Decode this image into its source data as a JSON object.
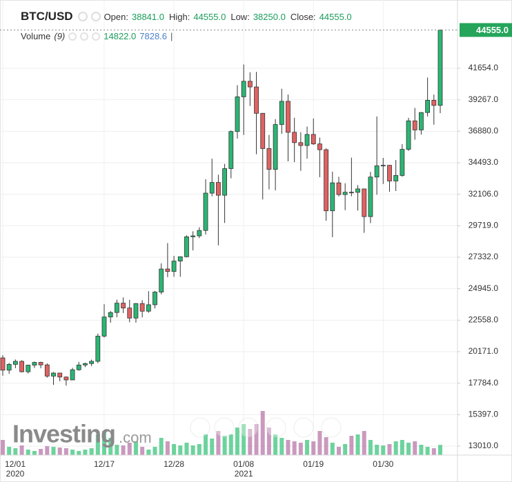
{
  "header": {
    "symbol": "BTC/USD",
    "fields": [
      {
        "name": "Open:",
        "value": "38841.0"
      },
      {
        "name": "High:",
        "value": "44555.0"
      },
      {
        "name": "Low:",
        "value": "38250.0"
      },
      {
        "name": "Close:",
        "value": "44555.0"
      }
    ]
  },
  "volume_legend": {
    "name": "Volume",
    "period": "(9)",
    "last": {
      "value": 14822,
      "label": "14822.0"
    },
    "ma": 7828.6
  },
  "watermark": {
    "brand": "Investing",
    "domain": ".com"
  },
  "chart_data": {
    "type": "candlestick",
    "categories": [
      "12/01",
      null,
      null,
      null,
      null,
      null,
      null,
      null,
      null,
      null,
      null,
      null,
      null,
      null,
      null,
      null,
      "12/17",
      null,
      null,
      null,
      null,
      null,
      null,
      null,
      null,
      null,
      null,
      "12/28",
      null,
      null,
      null,
      null,
      null,
      null,
      null,
      null,
      null,
      null,
      "01/08",
      null,
      null,
      null,
      null,
      null,
      null,
      null,
      null,
      null,
      null,
      "01/19",
      null,
      null,
      null,
      null,
      null,
      null,
      null,
      null,
      null,
      null,
      "01/30",
      null,
      null,
      null,
      null,
      null,
      null,
      null,
      null,
      null
    ],
    "category_years": [
      "2020",
      null,
      null,
      null,
      null,
      null,
      null,
      null,
      null,
      null,
      null,
      null,
      null,
      null,
      null,
      null,
      null,
      null,
      null,
      null,
      null,
      null,
      null,
      null,
      null,
      null,
      null,
      null,
      null,
      null,
      null,
      null,
      null,
      null,
      null,
      null,
      null,
      null,
      "2021",
      null,
      null,
      null,
      null,
      null,
      null,
      null,
      null,
      null,
      null,
      null,
      null,
      null,
      null,
      null,
      null,
      null,
      null,
      null,
      null,
      null,
      null,
      null,
      null,
      null,
      null,
      null,
      null,
      null,
      null,
      null
    ],
    "open": [
      19700,
      18770,
      19210,
      19440,
      18650,
      19150,
      19360,
      19170,
      18320,
      18550,
      18250,
      18030,
      18800,
      19160,
      19270,
      19440,
      21350,
      22800,
      23140,
      23850,
      23480,
      22720,
      23820,
      23240,
      23730,
      24690,
      26440,
      26250,
      27040,
      27370,
      28880,
      28950,
      29360,
      32190,
      33000,
      32030,
      34050,
      36860,
      39490,
      40670,
      40240,
      38240,
      35570,
      33990,
      37390,
      39150,
      36800,
      36020,
      35800,
      36640,
      35920,
      35480,
      30850,
      32970,
      32080,
      32260,
      32250,
      32510,
      30410,
      33410,
      34260,
      34300,
      33110,
      33530,
      35510,
      37670,
      36980,
      38300,
      39230,
      38841
    ],
    "high": [
      19900,
      19320,
      19580,
      19520,
      19180,
      19420,
      19410,
      19290,
      18630,
      18560,
      18290,
      18950,
      19400,
      19340,
      19570,
      21540,
      23770,
      23250,
      24120,
      24280,
      24100,
      23850,
      24080,
      24760,
      24770,
      26870,
      28400,
      27430,
      27390,
      28990,
      29300,
      29600,
      33240,
      34800,
      33590,
      34410,
      36940,
      40370,
      41940,
      41350,
      41380,
      38270,
      36600,
      37800,
      40100,
      39660,
      37900,
      36800,
      37240,
      37850,
      36400,
      35590,
      33820,
      33430,
      32940,
      34880,
      32800,
      32520,
      33800,
      38000,
      34860,
      34330,
      34700,
      35900,
      37900,
      38650,
      38330,
      40950,
      39660,
      44555
    ],
    "low": [
      18350,
      18500,
      18920,
      18600,
      18520,
      18930,
      18910,
      18200,
      17650,
      17920,
      17600,
      18020,
      18730,
      19000,
      19080,
      19300,
      21240,
      22370,
      22780,
      23100,
      22400,
      22370,
      22770,
      23120,
      23450,
      24520,
      25820,
      25850,
      25850,
      27320,
      27850,
      28780,
      29050,
      31950,
      28230,
      29930,
      33310,
      36330,
      36600,
      38800,
      35140,
      31710,
      32470,
      32400,
      36680,
      34600,
      34540,
      33880,
      34800,
      35850,
      33400,
      30100,
      28850,
      31940,
      30900,
      31950,
      30870,
      29180,
      29920,
      32070,
      32880,
      32300,
      32350,
      33430,
      35390,
      36240,
      36630,
      38000,
      37380,
      38250
    ],
    "close": [
      18770,
      19210,
      19440,
      18650,
      19150,
      19360,
      19170,
      18320,
      18550,
      18250,
      18030,
      18800,
      19160,
      19270,
      19440,
      21350,
      22800,
      23140,
      23850,
      23480,
      22720,
      23820,
      23240,
      23730,
      24690,
      26440,
      26250,
      27040,
      27370,
      28880,
      28950,
      29360,
      32190,
      33000,
      32030,
      34050,
      36860,
      39490,
      40670,
      40240,
      38240,
      35570,
      33990,
      37390,
      39150,
      36800,
      36020,
      35800,
      36640,
      35920,
      35480,
      30850,
      32970,
      32080,
      32260,
      32250,
      32510,
      30410,
      33410,
      34260,
      34300,
      33110,
      33530,
      35510,
      37670,
      36980,
      38300,
      39230,
      38840,
      44555
    ],
    "volume": [
      22000,
      12000,
      10000,
      14000,
      8000,
      6000,
      9000,
      13000,
      12000,
      11000,
      10000,
      8000,
      6000,
      8000,
      10000,
      30000,
      35000,
      25000,
      15000,
      14000,
      18000,
      20000,
      12000,
      8000,
      12000,
      25000,
      20000,
      16000,
      14000,
      18000,
      14000,
      16000,
      30000,
      24000,
      35000,
      28000,
      30000,
      40000,
      45000,
      38000,
      45000,
      64000,
      40000,
      30000,
      25000,
      22000,
      20000,
      18000,
      22000,
      20000,
      35000,
      26000,
      18000,
      12000,
      16000,
      28000,
      30000,
      35000,
      22000,
      15000,
      14000,
      16000,
      20000,
      22000,
      18000,
      20000,
      15000,
      12000,
      10000,
      14822
    ],
    "volume_lim": [
      0,
      70000
    ],
    "up_color": "#2bb673",
    "down_color": "#e06262",
    "volume_up_color": "#3cc47c",
    "volume_down_color": "#b877a8",
    "ylim": [
      12330,
      46830
    ],
    "yticks": [
      {
        "value": 13010,
        "label": "13010.0"
      },
      {
        "value": 15397,
        "label": "15397.0"
      },
      {
        "value": 17784,
        "label": "17784.0"
      },
      {
        "value": 20171,
        "label": "20171.0"
      },
      {
        "value": 22558,
        "label": "22558.0"
      },
      {
        "value": 24945,
        "label": "24945.0"
      },
      {
        "value": 27332,
        "label": "27332.0"
      },
      {
        "value": 29719,
        "label": "29719.0"
      },
      {
        "value": 32106,
        "label": "32106.0"
      },
      {
        "value": 34493,
        "label": "34493.0"
      },
      {
        "value": 36880,
        "label": "36880.0"
      },
      {
        "value": 39267,
        "label": "39267.0"
      },
      {
        "value": 41654,
        "label": "41654.0"
      }
    ],
    "last_price": {
      "value": 44555,
      "label": "44555.0"
    },
    "grid": true
  }
}
